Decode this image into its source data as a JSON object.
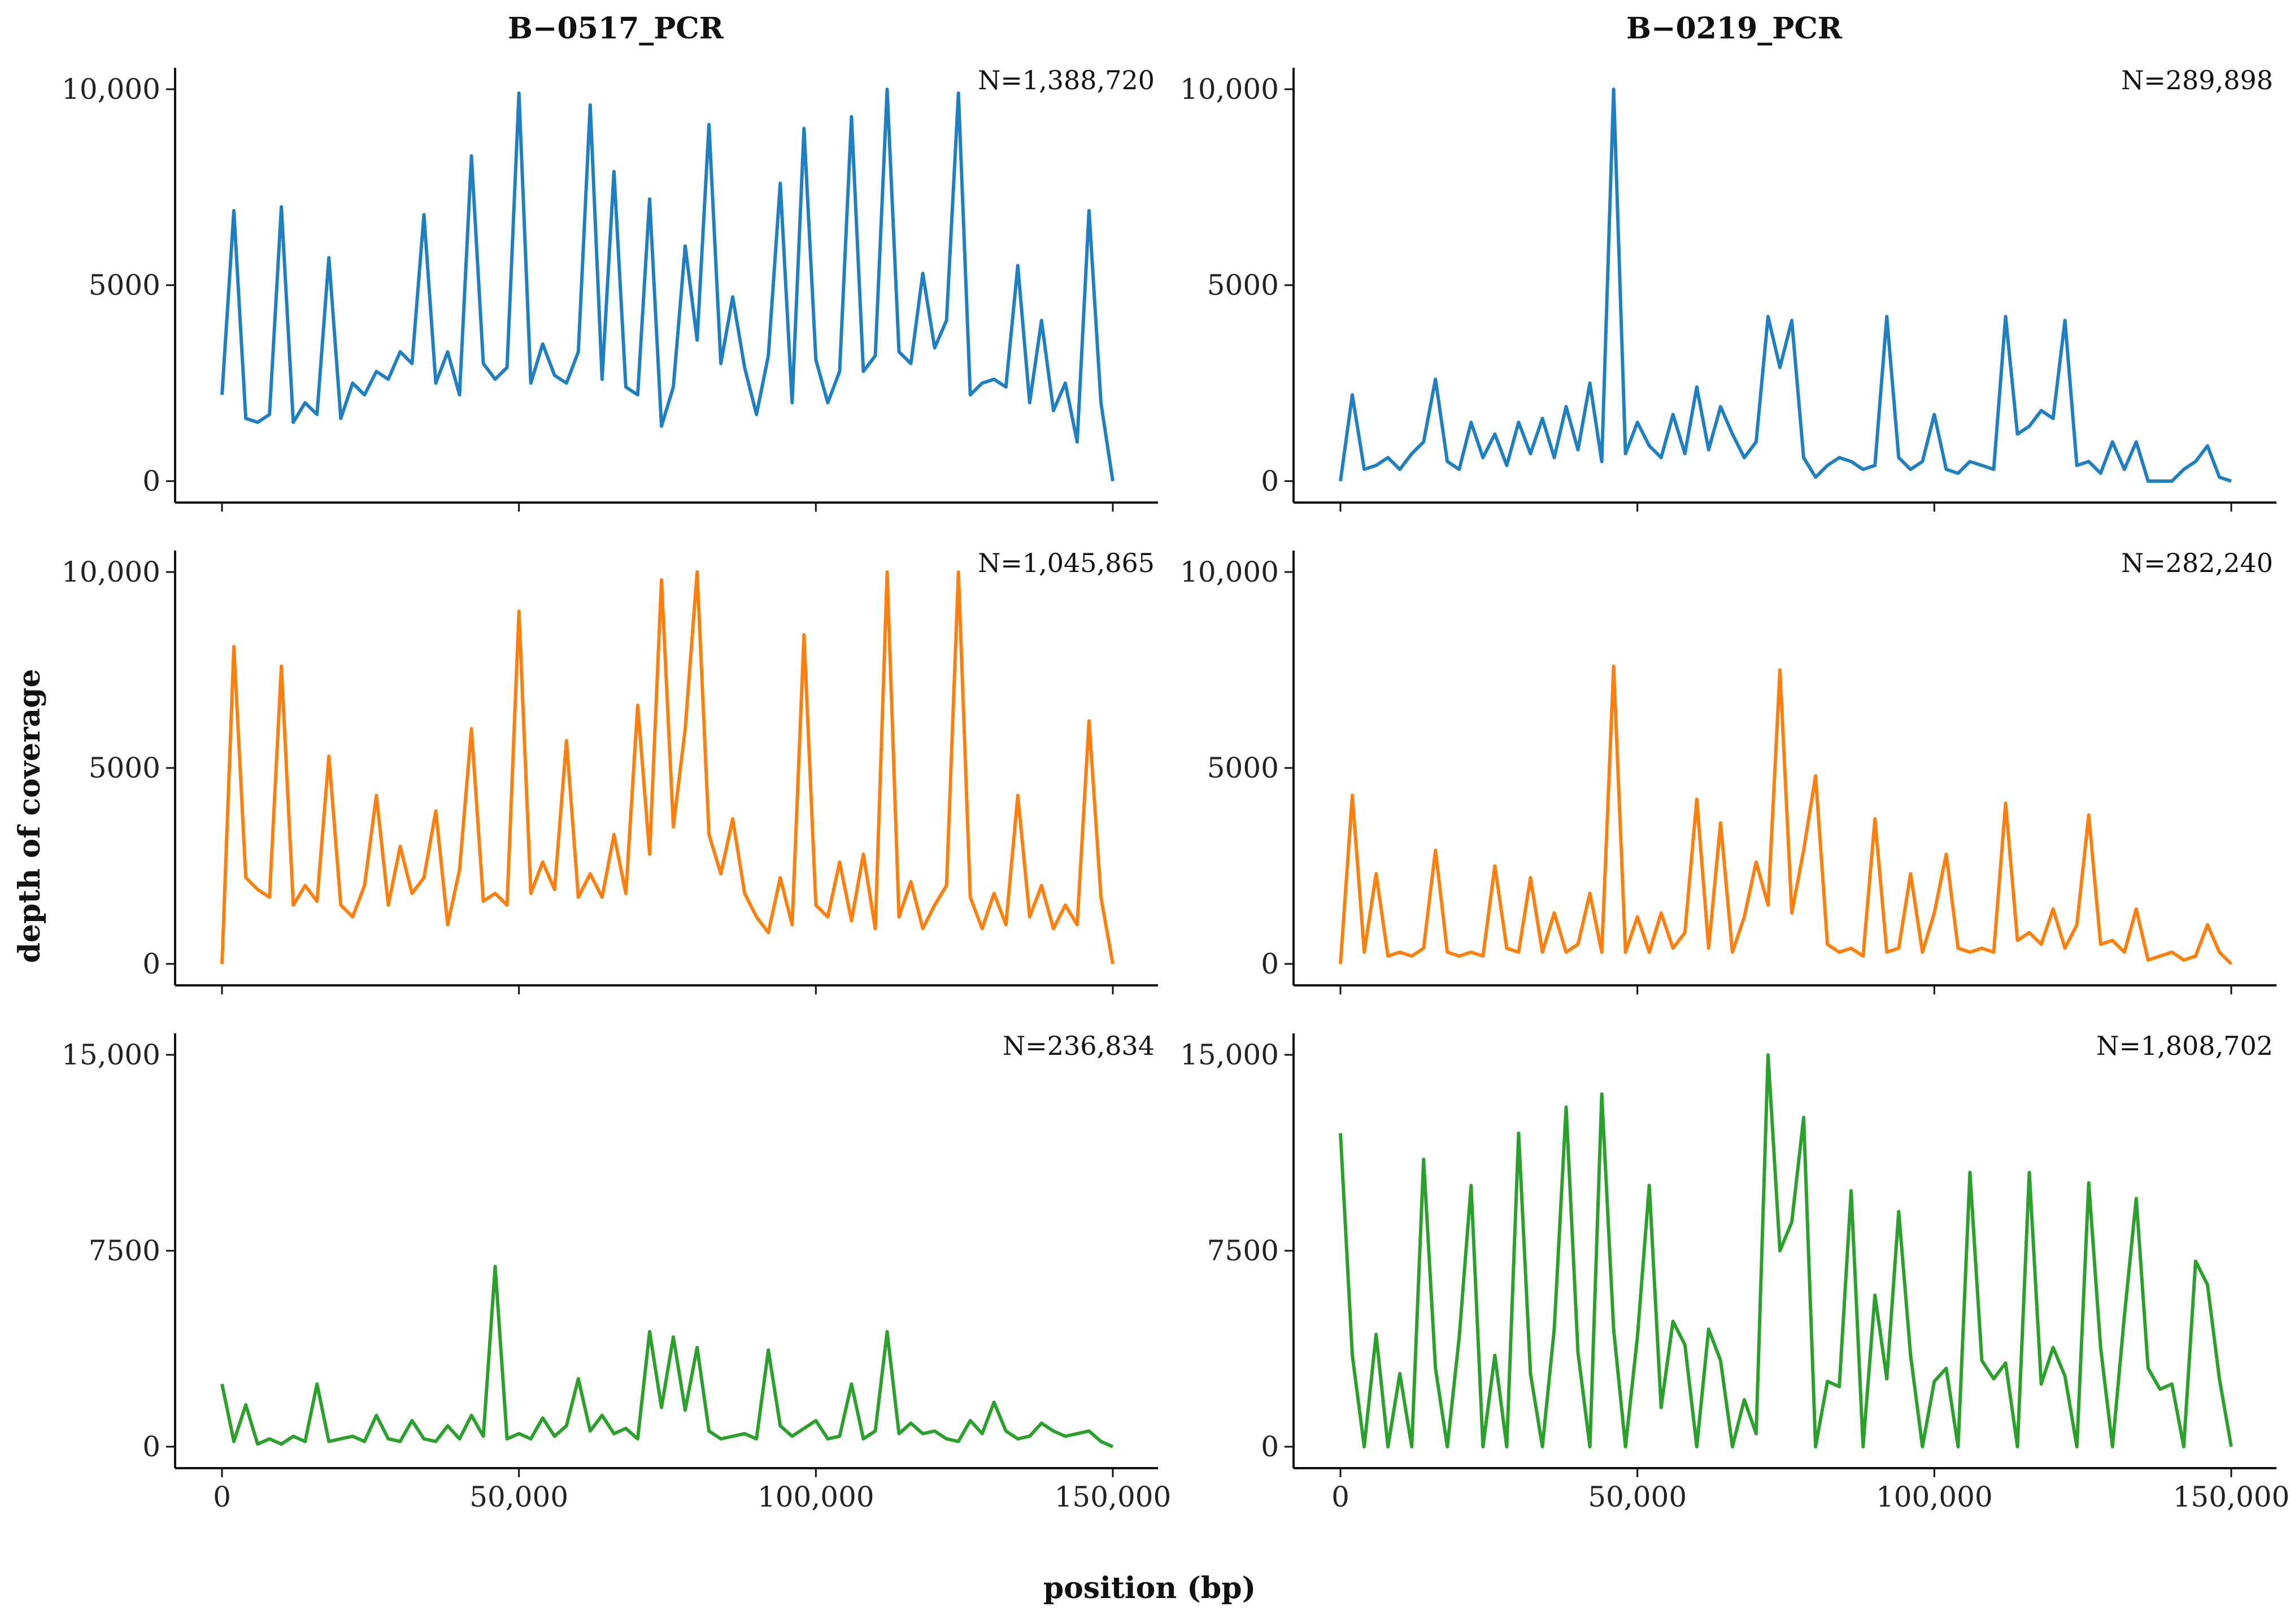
{
  "figure": {
    "column_titles": [
      "B−0517_PCR",
      "B−0219_PCR"
    ],
    "ylabel": "depth of coverage",
    "xlabel": "position (bp)"
  },
  "chart_data": [
    {
      "type": "line",
      "panel": "row1-col1",
      "column": "B−0517_PCR",
      "color": "#1f7fc0",
      "annotation": "N=1,388,720",
      "xlim": [
        0,
        150000
      ],
      "ylim": [
        0,
        10000
      ],
      "yticks": [
        0,
        5000,
        10000
      ],
      "ytick_labels": [
        "0",
        "5000",
        "10,000"
      ],
      "xticks": [
        0,
        50000,
        100000,
        150000
      ],
      "xtick_labels": [],
      "x": [
        0,
        2000,
        4000,
        6000,
        8000,
        10000,
        12000,
        14000,
        16000,
        18000,
        20000,
        22000,
        24000,
        26000,
        28000,
        30000,
        32000,
        34000,
        36000,
        38000,
        40000,
        42000,
        44000,
        46000,
        48000,
        50000,
        52000,
        54000,
        56000,
        58000,
        60000,
        62000,
        64000,
        66000,
        68000,
        70000,
        72000,
        74000,
        76000,
        78000,
        80000,
        82000,
        84000,
        86000,
        88000,
        90000,
        92000,
        94000,
        96000,
        98000,
        100000,
        102000,
        104000,
        106000,
        108000,
        110000,
        112000,
        114000,
        116000,
        118000,
        120000,
        122000,
        124000,
        126000,
        128000,
        130000,
        132000,
        134000,
        136000,
        138000,
        140000,
        142000,
        144000,
        146000,
        148000,
        150000
      ],
      "y": [
        2200,
        6900,
        1600,
        1500,
        1700,
        7000,
        1500,
        2000,
        1700,
        5700,
        1600,
        2500,
        2200,
        2800,
        2600,
        3300,
        3000,
        6800,
        2500,
        3300,
        2200,
        8300,
        3000,
        2600,
        2900,
        9900,
        2500,
        3500,
        2700,
        2500,
        3300,
        9600,
        2600,
        7900,
        2400,
        2200,
        7200,
        1400,
        2400,
        6000,
        3600,
        9100,
        3000,
        4700,
        2900,
        1700,
        3200,
        7600,
        2000,
        9000,
        3100,
        2000,
        2800,
        9300,
        2800,
        3200,
        10000,
        3300,
        3000,
        5300,
        3400,
        4100,
        9900,
        2200,
        2500,
        2600,
        2400,
        5500,
        2000,
        4100,
        1800,
        2500,
        1000,
        6900,
        2000,
        0
      ]
    },
    {
      "type": "line",
      "panel": "row1-col2",
      "column": "B−0219_PCR",
      "color": "#1f7fc0",
      "annotation": "N=289,898",
      "xlim": [
        0,
        150000
      ],
      "ylim": [
        0,
        10000
      ],
      "yticks": [
        0,
        5000,
        10000
      ],
      "ytick_labels": [
        "0",
        "5000",
        "10,000"
      ],
      "xticks": [
        0,
        50000,
        100000,
        150000
      ],
      "xtick_labels": [],
      "x": [
        0,
        2000,
        4000,
        6000,
        8000,
        10000,
        12000,
        14000,
        16000,
        18000,
        20000,
        22000,
        24000,
        26000,
        28000,
        30000,
        32000,
        34000,
        36000,
        38000,
        40000,
        42000,
        44000,
        46000,
        48000,
        50000,
        52000,
        54000,
        56000,
        58000,
        60000,
        62000,
        64000,
        66000,
        68000,
        70000,
        72000,
        74000,
        76000,
        78000,
        80000,
        82000,
        84000,
        86000,
        88000,
        90000,
        92000,
        94000,
        96000,
        98000,
        100000,
        102000,
        104000,
        106000,
        108000,
        110000,
        112000,
        114000,
        116000,
        118000,
        120000,
        122000,
        124000,
        126000,
        128000,
        130000,
        132000,
        134000,
        136000,
        138000,
        140000,
        142000,
        144000,
        146000,
        148000,
        150000
      ],
      "y": [
        0,
        2200,
        300,
        400,
        600,
        300,
        700,
        1000,
        2600,
        500,
        300,
        1500,
        600,
        1200,
        400,
        1500,
        700,
        1600,
        600,
        1900,
        800,
        2500,
        500,
        10000,
        700,
        1500,
        900,
        600,
        1700,
        700,
        2400,
        800,
        1900,
        1200,
        600,
        1000,
        4200,
        2900,
        4100,
        600,
        100,
        400,
        600,
        500,
        300,
        400,
        4200,
        600,
        300,
        500,
        1700,
        300,
        200,
        500,
        400,
        300,
        4200,
        1200,
        1400,
        1800,
        1600,
        4100,
        400,
        500,
        200,
        1000,
        300,
        1000,
        0,
        0,
        0,
        300,
        500,
        900,
        100,
        0
      ]
    },
    {
      "type": "line",
      "panel": "row2-col1",
      "column": "B−0517_PCR",
      "color": "#ff7f0e",
      "annotation": "N=1,045,865",
      "xlim": [
        0,
        150000
      ],
      "ylim": [
        0,
        10000
      ],
      "yticks": [
        0,
        5000,
        10000
      ],
      "ytick_labels": [
        "0",
        "5000",
        "10,000"
      ],
      "xticks": [
        0,
        50000,
        100000,
        150000
      ],
      "xtick_labels": [],
      "x": [
        0,
        2000,
        4000,
        6000,
        8000,
        10000,
        12000,
        14000,
        16000,
        18000,
        20000,
        22000,
        24000,
        26000,
        28000,
        30000,
        32000,
        34000,
        36000,
        38000,
        40000,
        42000,
        44000,
        46000,
        48000,
        50000,
        52000,
        54000,
        56000,
        58000,
        60000,
        62000,
        64000,
        66000,
        68000,
        70000,
        72000,
        74000,
        76000,
        78000,
        80000,
        82000,
        84000,
        86000,
        88000,
        90000,
        92000,
        94000,
        96000,
        98000,
        100000,
        102000,
        104000,
        106000,
        108000,
        110000,
        112000,
        114000,
        116000,
        118000,
        120000,
        122000,
        124000,
        126000,
        128000,
        130000,
        132000,
        134000,
        136000,
        138000,
        140000,
        142000,
        144000,
        146000,
        148000,
        150000
      ],
      "y": [
        0,
        8100,
        2200,
        1900,
        1700,
        7600,
        1500,
        2000,
        1600,
        5300,
        1500,
        1200,
        2000,
        4300,
        1500,
        3000,
        1800,
        2200,
        3900,
        1000,
        2400,
        6000,
        1600,
        1800,
        1500,
        9000,
        1800,
        2600,
        1900,
        5700,
        1700,
        2300,
        1700,
        3300,
        1800,
        6600,
        2800,
        9800,
        3500,
        6000,
        10000,
        3300,
        2300,
        3700,
        1800,
        1200,
        800,
        2200,
        1000,
        8400,
        1500,
        1200,
        2600,
        1100,
        2800,
        900,
        10000,
        1200,
        2100,
        900,
        1500,
        2000,
        10000,
        1700,
        900,
        1800,
        1000,
        4300,
        1200,
        2000,
        900,
        1500,
        1000,
        6200,
        1700,
        0
      ]
    },
    {
      "type": "line",
      "panel": "row2-col2",
      "column": "B−0219_PCR",
      "color": "#ff7f0e",
      "annotation": "N=282,240",
      "xlim": [
        0,
        150000
      ],
      "ylim": [
        0,
        10000
      ],
      "yticks": [
        0,
        5000,
        10000
      ],
      "ytick_labels": [
        "0",
        "5000",
        "10,000"
      ],
      "xticks": [
        0,
        50000,
        100000,
        150000
      ],
      "xtick_labels": [],
      "x": [
        0,
        2000,
        4000,
        6000,
        8000,
        10000,
        12000,
        14000,
        16000,
        18000,
        20000,
        22000,
        24000,
        26000,
        28000,
        30000,
        32000,
        34000,
        36000,
        38000,
        40000,
        42000,
        44000,
        46000,
        48000,
        50000,
        52000,
        54000,
        56000,
        58000,
        60000,
        62000,
        64000,
        66000,
        68000,
        70000,
        72000,
        74000,
        76000,
        78000,
        80000,
        82000,
        84000,
        86000,
        88000,
        90000,
        92000,
        94000,
        96000,
        98000,
        100000,
        102000,
        104000,
        106000,
        108000,
        110000,
        112000,
        114000,
        116000,
        118000,
        120000,
        122000,
        124000,
        126000,
        128000,
        130000,
        132000,
        134000,
        136000,
        138000,
        140000,
        142000,
        144000,
        146000,
        148000,
        150000
      ],
      "y": [
        0,
        4300,
        300,
        2300,
        200,
        300,
        200,
        400,
        2900,
        300,
        200,
        300,
        200,
        2500,
        400,
        300,
        2200,
        300,
        1300,
        300,
        500,
        1800,
        300,
        7600,
        300,
        1200,
        300,
        1300,
        400,
        800,
        4200,
        400,
        3600,
        300,
        1200,
        2600,
        1500,
        7500,
        1300,
        2900,
        4800,
        500,
        300,
        400,
        200,
        3700,
        300,
        400,
        2300,
        300,
        1300,
        2800,
        400,
        300,
        400,
        300,
        4100,
        600,
        800,
        500,
        1400,
        400,
        1000,
        3800,
        500,
        600,
        300,
        1400,
        100,
        200,
        300,
        100,
        200,
        1000,
        300,
        0
      ]
    },
    {
      "type": "line",
      "panel": "row3-col1",
      "column": "B−0517_PCR",
      "color": "#2ca02c",
      "annotation": "N=236,834",
      "xlim": [
        0,
        150000
      ],
      "ylim": [
        0,
        15000
      ],
      "yticks": [
        0,
        7500,
        15000
      ],
      "ytick_labels": [
        "0",
        "7500",
        "15,000"
      ],
      "xticks": [
        0,
        50000,
        100000,
        150000
      ],
      "xtick_labels": [
        "0",
        "50,000",
        "100,000",
        "150,000"
      ],
      "x": [
        0,
        2000,
        4000,
        6000,
        8000,
        10000,
        12000,
        14000,
        16000,
        18000,
        20000,
        22000,
        24000,
        26000,
        28000,
        30000,
        32000,
        34000,
        36000,
        38000,
        40000,
        42000,
        44000,
        46000,
        48000,
        50000,
        52000,
        54000,
        56000,
        58000,
        60000,
        62000,
        64000,
        66000,
        68000,
        70000,
        72000,
        74000,
        76000,
        78000,
        80000,
        82000,
        84000,
        86000,
        88000,
        90000,
        92000,
        94000,
        96000,
        98000,
        100000,
        102000,
        104000,
        106000,
        108000,
        110000,
        112000,
        114000,
        116000,
        118000,
        120000,
        122000,
        124000,
        126000,
        128000,
        130000,
        132000,
        134000,
        136000,
        138000,
        140000,
        142000,
        144000,
        146000,
        148000,
        150000
      ],
      "y": [
        2400,
        200,
        1600,
        100,
        300,
        100,
        400,
        200,
        2400,
        200,
        300,
        400,
        200,
        1200,
        300,
        200,
        1000,
        300,
        200,
        800,
        300,
        1200,
        400,
        6900,
        300,
        500,
        300,
        1100,
        400,
        800,
        2600,
        600,
        1200,
        500,
        700,
        300,
        4400,
        1500,
        4200,
        1400,
        3800,
        600,
        300,
        400,
        500,
        300,
        3700,
        800,
        400,
        700,
        1000,
        300,
        400,
        2400,
        300,
        600,
        4400,
        500,
        900,
        500,
        600,
        300,
        200,
        1000,
        500,
        1700,
        600,
        300,
        400,
        900,
        600,
        400,
        500,
        600,
        200,
        0
      ]
    },
    {
      "type": "line",
      "panel": "row3-col2",
      "column": "B−0219_PCR",
      "color": "#2ca02c",
      "annotation": "N=1,808,702",
      "xlim": [
        0,
        150000
      ],
      "ylim": [
        0,
        15000
      ],
      "yticks": [
        0,
        7500,
        15000
      ],
      "ytick_labels": [
        "0",
        "7500",
        "15,000"
      ],
      "xticks": [
        0,
        50000,
        100000,
        150000
      ],
      "xtick_labels": [
        "0",
        "50,000",
        "100,000",
        "150,000"
      ],
      "x": [
        0,
        2000,
        4000,
        6000,
        8000,
        10000,
        12000,
        14000,
        16000,
        18000,
        20000,
        22000,
        24000,
        26000,
        28000,
        30000,
        32000,
        34000,
        36000,
        38000,
        40000,
        42000,
        44000,
        46000,
        48000,
        50000,
        52000,
        54000,
        56000,
        58000,
        60000,
        62000,
        64000,
        66000,
        68000,
        70000,
        72000,
        74000,
        76000,
        78000,
        80000,
        82000,
        84000,
        86000,
        88000,
        90000,
        92000,
        94000,
        96000,
        98000,
        100000,
        102000,
        104000,
        106000,
        108000,
        110000,
        112000,
        114000,
        116000,
        118000,
        120000,
        122000,
        124000,
        126000,
        128000,
        130000,
        132000,
        134000,
        136000,
        138000,
        140000,
        142000,
        144000,
        146000,
        148000,
        150000
      ],
      "y": [
        12000,
        3500,
        0,
        4300,
        0,
        2800,
        0,
        11000,
        3000,
        0,
        4200,
        10000,
        0,
        3500,
        0,
        12000,
        2800,
        0,
        4500,
        13000,
        3600,
        0,
        13500,
        4500,
        0,
        4200,
        10000,
        1500,
        4800,
        3900,
        0,
        4500,
        3300,
        0,
        1800,
        500,
        15000,
        7500,
        8600,
        12600,
        0,
        2500,
        2300,
        9800,
        0,
        5800,
        2600,
        9000,
        3500,
        0,
        2500,
        3000,
        0,
        10500,
        3300,
        2600,
        3200,
        0,
        10500,
        2400,
        3800,
        2700,
        0,
        10100,
        3800,
        0,
        5000,
        9500,
        3000,
        2200,
        2400,
        0,
        7100,
        6200,
        2600,
        0
      ]
    }
  ]
}
